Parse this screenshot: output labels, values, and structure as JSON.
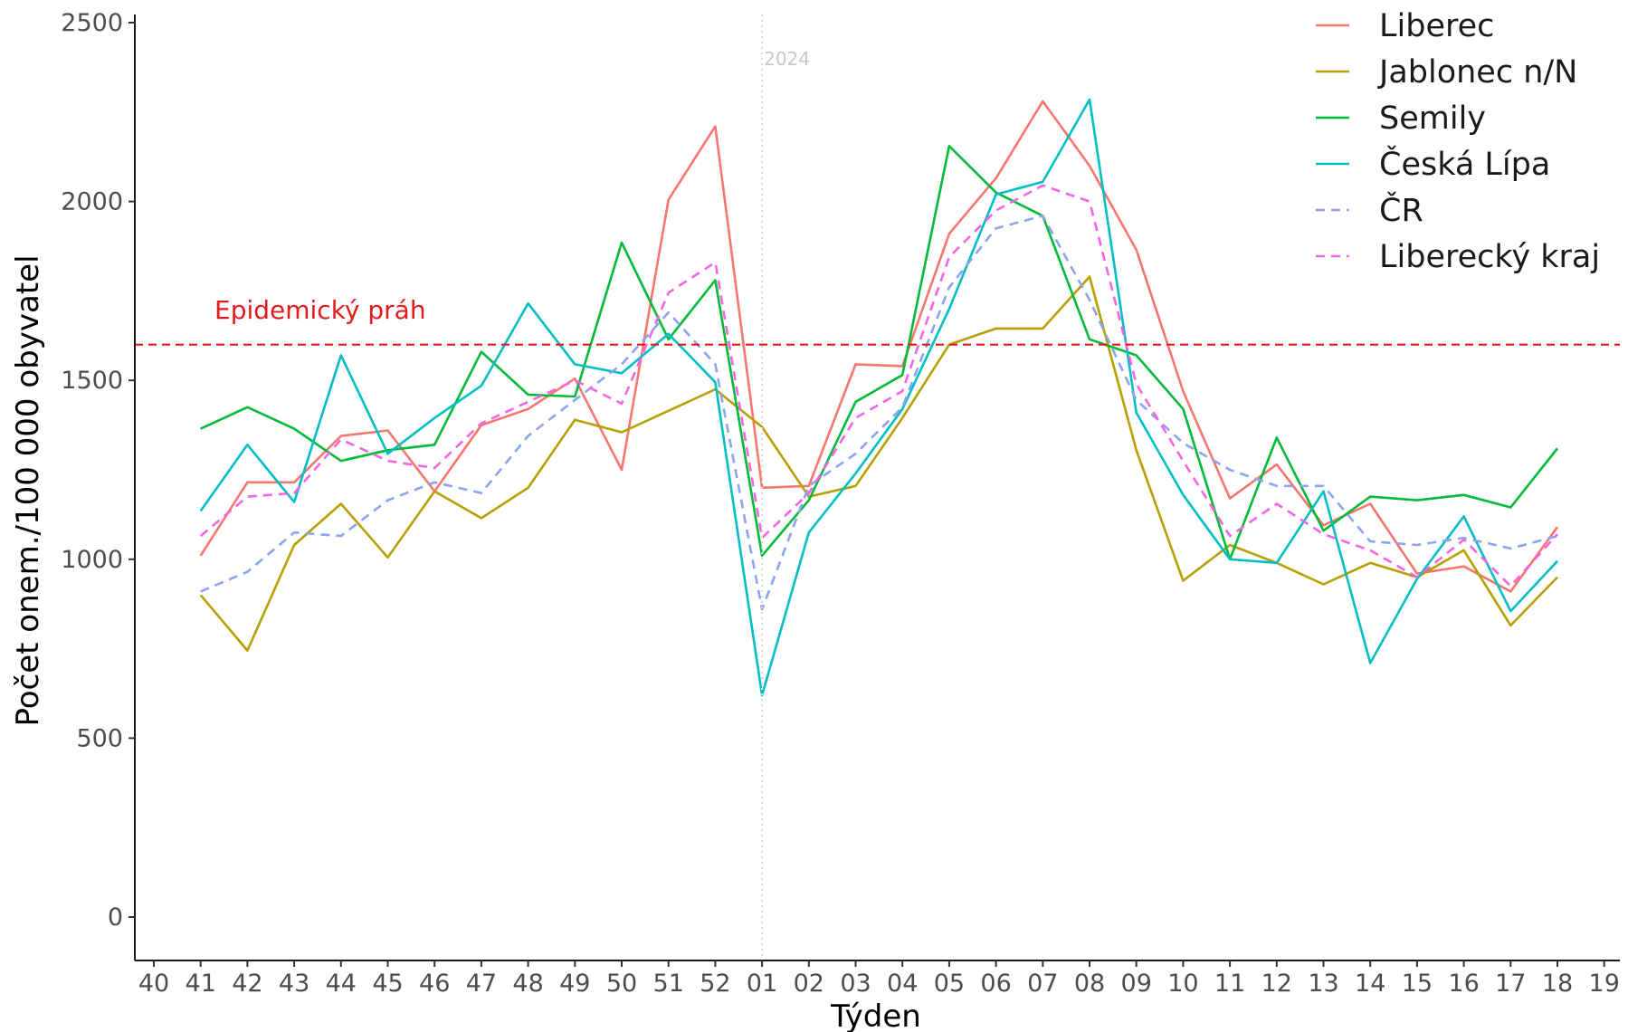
{
  "chart_data": {
    "type": "line",
    "title": "",
    "xlabel": "Týden",
    "ylabel": "Počet onem./100 000 obyvatel",
    "x_ticks": [
      "40",
      "41",
      "42",
      "43",
      "44",
      "45",
      "46",
      "47",
      "48",
      "49",
      "50",
      "51",
      "52",
      "01",
      "02",
      "03",
      "04",
      "05",
      "06",
      "07",
      "08",
      "09",
      "10",
      "11",
      "12",
      "13",
      "14",
      "15",
      "16",
      "17",
      "18",
      "19"
    ],
    "y_ticks": [
      0,
      500,
      1000,
      1500,
      2000,
      2500
    ],
    "ylim": [
      -120,
      2500
    ],
    "grid": false,
    "legend_position": "top-right",
    "data_x": [
      "41",
      "42",
      "43",
      "44",
      "45",
      "46",
      "47",
      "48",
      "49",
      "50",
      "51",
      "52",
      "01",
      "02",
      "03",
      "04",
      "05",
      "06",
      "07",
      "08",
      "09",
      "10",
      "11",
      "12",
      "13",
      "14",
      "15",
      "16",
      "17",
      "18"
    ],
    "series": [
      {
        "name": "Liberec",
        "color": "#f8766d",
        "dash": "solid",
        "values": [
          1010,
          1215,
          1215,
          1345,
          1360,
          1190,
          1375,
          1420,
          1505,
          1250,
          2005,
          2210,
          1200,
          1205,
          1545,
          1540,
          1910,
          2065,
          2280,
          2100,
          1865,
          1470,
          1170,
          1265,
          1095,
          1155,
          960,
          980,
          910,
          1090
        ]
      },
      {
        "name": "Jablonec n/N",
        "color": "#b79f00",
        "dash": "solid",
        "values": [
          900,
          745,
          1040,
          1155,
          1005,
          1190,
          1115,
          1200,
          1390,
          1355,
          1415,
          1475,
          1370,
          1175,
          1205,
          1395,
          1600,
          1645,
          1645,
          1790,
          1305,
          940,
          1040,
          990,
          930,
          990,
          950,
          1025,
          815,
          950
        ]
      },
      {
        "name": "Semily",
        "color": "#00ba38",
        "dash": "solid",
        "values": [
          1365,
          1425,
          1365,
          1275,
          1305,
          1320,
          1580,
          1460,
          1455,
          1885,
          1615,
          1780,
          1010,
          1165,
          1440,
          1515,
          2155,
          2025,
          1960,
          1615,
          1570,
          1420,
          1000,
          1340,
          1080,
          1175,
          1165,
          1180,
          1145,
          1310
        ]
      },
      {
        "name": "Česká Lípa",
        "color": "#00bfc4",
        "dash": "solid",
        "values": [
          1135,
          1320,
          1160,
          1570,
          1295,
          1395,
          1485,
          1715,
          1545,
          1520,
          1630,
          1495,
          620,
          1075,
          1240,
          1420,
          1700,
          2020,
          2055,
          2285,
          1410,
          1180,
          1000,
          990,
          1190,
          710,
          945,
          1120,
          855,
          995
        ]
      },
      {
        "name": "ČR",
        "color": "#8ba4f0",
        "dash": "dashed",
        "values": [
          910,
          965,
          1075,
          1065,
          1165,
          1215,
          1185,
          1345,
          1445,
          1545,
          1690,
          1545,
          860,
          1205,
          1295,
          1425,
          1760,
          1925,
          1960,
          1725,
          1445,
          1325,
          1250,
          1205,
          1205,
          1050,
          1040,
          1060,
          1030,
          1065
        ]
      },
      {
        "name": "Liberecký kraj",
        "color": "#f564e3",
        "dash": "dashed",
        "values": [
          1065,
          1175,
          1185,
          1335,
          1275,
          1255,
          1380,
          1440,
          1500,
          1435,
          1745,
          1830,
          1060,
          1185,
          1395,
          1470,
          1845,
          1975,
          2045,
          2000,
          1490,
          1275,
          1065,
          1155,
          1070,
          1025,
          950,
          1055,
          925,
          1070
        ]
      }
    ],
    "threshold": {
      "value": 1600,
      "label": "Epidemický práh",
      "color": "#e41a1c"
    },
    "year_marker": {
      "x": "01",
      "label": "2024"
    }
  }
}
